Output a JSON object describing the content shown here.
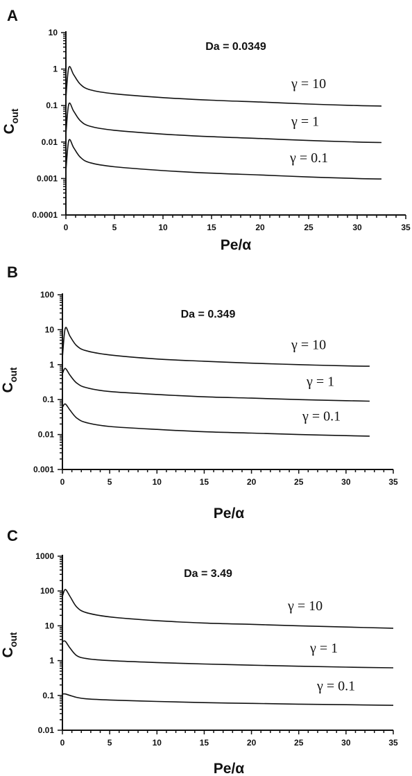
{
  "chart_data": [
    {
      "panel": "A",
      "type": "line",
      "annotation": "Da = 0.0349",
      "xlabel": "Pe/α",
      "ylabel_main": "C",
      "ylabel_sub": "out",
      "xlim": [
        0,
        35
      ],
      "ylim": [
        0.0001,
        10
      ],
      "yscale": "log",
      "xticks": [
        0,
        5,
        10,
        15,
        20,
        25,
        30,
        35
      ],
      "yticks": [
        "0.0001",
        "0.001",
        "0.01",
        "0.1",
        "1",
        "10"
      ],
      "x_end": 32.5,
      "series": [
        {
          "name": "γ = 10",
          "x": [
            0,
            0.3,
            0.8,
            1.5,
            2.5,
            5,
            10,
            15,
            20,
            25,
            30,
            32.5
          ],
          "y": [
            0.16,
            1.1,
            0.7,
            0.38,
            0.27,
            0.21,
            0.165,
            0.14,
            0.125,
            0.11,
            0.1,
            0.097
          ]
        },
        {
          "name": "γ = 1",
          "x": [
            0,
            0.3,
            0.8,
            1.5,
            2.5,
            5,
            10,
            15,
            20,
            25,
            30,
            32.5
          ],
          "y": [
            0.016,
            0.11,
            0.07,
            0.038,
            0.027,
            0.021,
            0.0165,
            0.014,
            0.0125,
            0.011,
            0.01,
            0.0097
          ]
        },
        {
          "name": "γ = 0.1",
          "x": [
            0,
            0.3,
            0.8,
            1.5,
            2.5,
            5,
            10,
            15,
            20,
            25,
            30,
            32.5
          ],
          "y": [
            0.0016,
            0.011,
            0.007,
            0.0038,
            0.0027,
            0.0021,
            0.00165,
            0.0014,
            0.00125,
            0.0011,
            0.001,
            0.00097
          ]
        }
      ]
    },
    {
      "panel": "B",
      "type": "line",
      "annotation": "Da = 0.349",
      "xlabel": "Pe/α",
      "ylabel_main": "C",
      "ylabel_sub": "out",
      "xlim": [
        0,
        35
      ],
      "ylim": [
        0.001,
        100
      ],
      "yscale": "log",
      "xticks": [
        0,
        5,
        10,
        15,
        20,
        25,
        30,
        35
      ],
      "yticks": [
        "0.001",
        "0.01",
        "0.1",
        "1",
        "10",
        "100"
      ],
      "x_end": 32.5,
      "series": [
        {
          "name": "γ = 10",
          "x": [
            0,
            0.3,
            0.8,
            1.5,
            2.5,
            5,
            10,
            15,
            20,
            25,
            30,
            32.5
          ],
          "y": [
            1.6,
            11,
            6.5,
            3.5,
            2.5,
            1.9,
            1.45,
            1.25,
            1.1,
            1.0,
            0.92,
            0.9
          ]
        },
        {
          "name": "γ = 1",
          "x": [
            0,
            0.3,
            0.8,
            1.5,
            2.5,
            5,
            10,
            15,
            20,
            25,
            30,
            32.5
          ],
          "y": [
            0.55,
            0.78,
            0.5,
            0.3,
            0.22,
            0.17,
            0.14,
            0.12,
            0.11,
            0.1,
            0.093,
            0.09
          ]
        },
        {
          "name": "γ = 0.1",
          "x": [
            0,
            0.3,
            0.8,
            1.5,
            2.5,
            5,
            10,
            15,
            20,
            25,
            30,
            32.5
          ],
          "y": [
            0.06,
            0.075,
            0.05,
            0.03,
            0.022,
            0.017,
            0.014,
            0.012,
            0.011,
            0.01,
            0.0093,
            0.009
          ]
        }
      ]
    },
    {
      "panel": "C",
      "type": "line",
      "annotation": "Da = 3.49",
      "xlabel": "Pe/α",
      "ylabel_main": "C",
      "ylabel_sub": "out",
      "xlim": [
        0,
        35
      ],
      "ylim": [
        0.01,
        1000
      ],
      "yscale": "log",
      "xticks": [
        0,
        5,
        10,
        15,
        20,
        25,
        30,
        35
      ],
      "yticks": [
        "0.01",
        "0.1",
        "1",
        "10",
        "100",
        "1000"
      ],
      "x_end": 35,
      "series": [
        {
          "name": "γ = 10",
          "x": [
            0,
            0.3,
            0.8,
            1.5,
            2.5,
            5,
            10,
            15,
            20,
            25,
            30,
            35
          ],
          "y": [
            70,
            110,
            70,
            35,
            24,
            18,
            14,
            12,
            11,
            10,
            9.2,
            8.5
          ]
        },
        {
          "name": "γ = 1",
          "x": [
            0,
            0.3,
            0.8,
            1.5,
            2.5,
            5,
            10,
            15,
            20,
            25,
            30,
            35
          ],
          "y": [
            3.5,
            3.6,
            2.3,
            1.4,
            1.15,
            1.0,
            0.88,
            0.8,
            0.74,
            0.69,
            0.65,
            0.62
          ]
        },
        {
          "name": "γ = 0.1",
          "x": [
            0,
            0.3,
            0.8,
            1.5,
            2.5,
            5,
            10,
            15,
            20,
            25,
            30,
            35
          ],
          "y": [
            0.11,
            0.11,
            0.1,
            0.088,
            0.08,
            0.074,
            0.067,
            0.062,
            0.059,
            0.056,
            0.054,
            0.052
          ]
        }
      ]
    }
  ]
}
